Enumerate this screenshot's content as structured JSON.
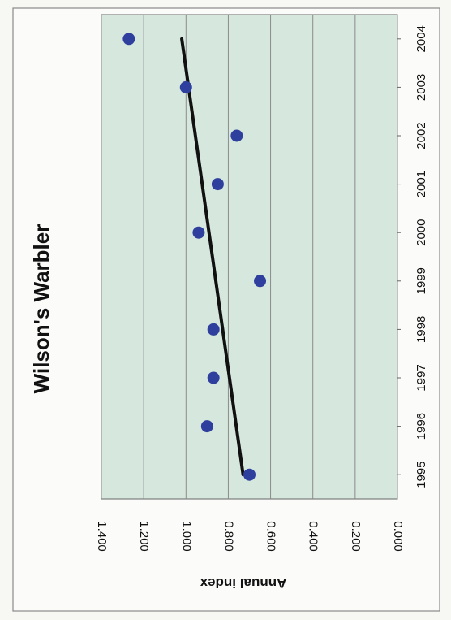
{
  "chart_data": {
    "type": "scatter",
    "title": "Wilson's Warbler",
    "xlabel": "",
    "ylabel": "Annual index",
    "categories": [
      "1995",
      "1996",
      "1997",
      "1998",
      "1999",
      "2000",
      "2001",
      "2002",
      "2003",
      "2004"
    ],
    "x": [
      1995,
      1996,
      1997,
      1998,
      1999,
      2000,
      2001,
      2002,
      2003,
      2004
    ],
    "y_tick_labels": [
      "0.000",
      "0.200",
      "0.400",
      "0.600",
      "0.800",
      "1.000",
      "1.200",
      "1.400"
    ],
    "ylim": [
      0,
      1.4
    ],
    "grid": true,
    "orientation": "rotated-90",
    "series": [
      {
        "values": [
          0.7,
          0.9,
          0.87,
          0.87,
          0.65,
          0.94,
          0.85,
          0.76,
          1.0,
          1.27
        ],
        "color": "#2f3f9e",
        "marker": "circle"
      }
    ],
    "trendline": {
      "type": "linear",
      "start": [
        1995,
        0.73
      ],
      "end": [
        2004,
        1.02
      ],
      "color": "#111111"
    },
    "colors": {
      "plot_background": "#d6e8dd",
      "gridline": "#8a8a8a",
      "border": "#555555"
    }
  }
}
